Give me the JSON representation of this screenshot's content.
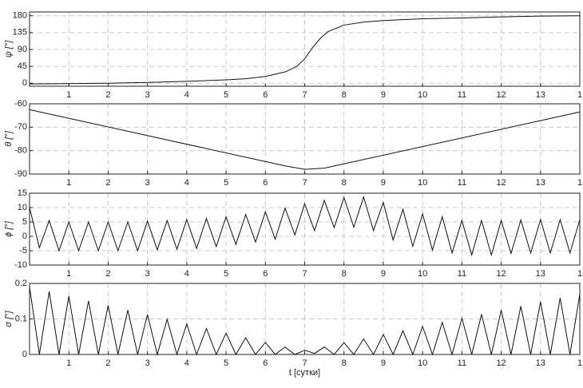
{
  "chart_data": [
    {
      "type": "line",
      "ylabel": "ψ [°]",
      "xlim": [
        0,
        14
      ],
      "xticks": [
        1,
        2,
        3,
        4,
        5,
        6,
        7,
        8,
        9,
        10,
        11,
        12,
        13,
        {
          "value": 14,
          "label": "1"
        }
      ],
      "ylim": [
        -8,
        190
      ],
      "yticks": [
        0,
        45,
        90,
        135,
        180
      ],
      "grid": true,
      "x": [
        0,
        1,
        2,
        3,
        4,
        5,
        5.5,
        6,
        6.5,
        6.8,
        7,
        7.2,
        7.4,
        7.6,
        8,
        8.5,
        9,
        10,
        11,
        12,
        13,
        14
      ],
      "series": [
        {
          "color": "#111111",
          "values": [
            -2,
            -1,
            0,
            2,
            5,
            9,
            12,
            18,
            30,
            45,
            65,
            95,
            120,
            138,
            155,
            163,
            167,
            172,
            174,
            177,
            179,
            180
          ]
        }
      ]
    },
    {
      "type": "line",
      "ylabel": "θ [°]",
      "xlim": [
        0,
        14
      ],
      "xticks": [
        1,
        2,
        3,
        4,
        5,
        6,
        7,
        8,
        9,
        10,
        11,
        12,
        13,
        {
          "value": 14,
          "label": "1"
        }
      ],
      "ylim": [
        -90,
        -60
      ],
      "yticks": [
        -60,
        -70,
        -80,
        -90
      ],
      "grid": true,
      "x": [
        0,
        6.5,
        7,
        7.5,
        14
      ],
      "series": [
        {
          "color": "#111111",
          "values": [
            -62.5,
            -86.5,
            -88,
            -87.5,
            -63.5
          ]
        }
      ]
    },
    {
      "type": "line",
      "ylabel": "ϕ [°]",
      "xlim": [
        0,
        14
      ],
      "xticks": [
        1,
        2,
        3,
        4,
        5,
        6,
        7,
        8,
        9,
        10,
        11,
        12,
        13,
        {
          "value": 14,
          "label": "1"
        }
      ],
      "ylim": [
        -10,
        15
      ],
      "yticks": [
        -10,
        -5,
        0,
        5,
        10,
        15
      ],
      "grid": true,
      "x": [
        0,
        0.25,
        0.5,
        0.75,
        1,
        1.25,
        1.5,
        1.75,
        2,
        2.25,
        2.5,
        2.75,
        3,
        3.25,
        3.5,
        3.75,
        4,
        4.25,
        4.5,
        4.75,
        5,
        5.25,
        5.5,
        5.75,
        6,
        6.25,
        6.5,
        6.75,
        7,
        7.25,
        7.5,
        7.75,
        8,
        8.25,
        8.5,
        8.75,
        9,
        9.25,
        9.5,
        9.75,
        10,
        10.25,
        10.5,
        10.75,
        11,
        11.25,
        11.5,
        11.75,
        12,
        12.25,
        12.5,
        12.75,
        13,
        13.25,
        13.5,
        13.75,
        14
      ],
      "series": [
        {
          "color": "#111111",
          "values": [
            10,
            -4,
            5.5,
            -5,
            5,
            -5,
            5,
            -5,
            5,
            -5,
            5,
            -5,
            5.3,
            -4.7,
            5.5,
            -4.5,
            5.8,
            -4.2,
            6.2,
            -3.6,
            6.8,
            -2.8,
            7.6,
            -2,
            8.5,
            -1,
            9.8,
            0.5,
            11.3,
            2,
            12.5,
            3,
            13.5,
            3.2,
            13.7,
            2,
            11.8,
            -1.3,
            9.4,
            -3.5,
            7.8,
            -4.8,
            6.8,
            -5.8,
            5.5,
            -6.5,
            5.5,
            -6.5,
            5.5,
            -6,
            5.7,
            -5.8,
            5.8,
            -5.8,
            5.8,
            -5.8,
            5.8
          ]
        }
      ]
    },
    {
      "type": "line",
      "ylabel": "σ [°]",
      "xlabel": "t [сутки]",
      "xlim": [
        0,
        14
      ],
      "xticks": [
        1,
        2,
        3,
        4,
        5,
        6,
        7,
        8,
        9,
        10,
        11,
        12,
        13,
        {
          "value": 14,
          "label": "1"
        }
      ],
      "ylim": [
        0,
        0.2
      ],
      "yticks": [
        0,
        0.1,
        0.2
      ],
      "grid": true,
      "x": [
        0,
        0.25,
        0.5,
        0.75,
        1,
        1.25,
        1.5,
        1.75,
        2,
        2.25,
        2.5,
        2.75,
        3,
        3.25,
        3.5,
        3.75,
        4,
        4.25,
        4.5,
        4.75,
        5,
        5.25,
        5.5,
        5.75,
        6,
        6.25,
        6.5,
        6.75,
        7,
        7.25,
        7.5,
        7.75,
        8,
        8.25,
        8.5,
        8.75,
        9,
        9.25,
        9.5,
        9.75,
        10,
        10.25,
        10.5,
        10.75,
        11,
        11.25,
        11.5,
        11.75,
        12,
        12.25,
        12.5,
        12.75,
        13,
        13.25,
        13.5,
        13.75,
        14
      ],
      "series": [
        {
          "color": "#111111",
          "values": [
            0.19,
            0,
            0.177,
            0,
            0.164,
            0,
            0.151,
            0,
            0.138,
            0,
            0.125,
            0,
            0.112,
            0,
            0.099,
            0,
            0.086,
            0,
            0.073,
            0,
            0.06,
            0,
            0.047,
            0,
            0.034,
            0,
            0.021,
            0,
            0.012,
            0.003,
            0.021,
            0,
            0.033,
            0,
            0.044,
            0,
            0.056,
            0,
            0.067,
            0,
            0.079,
            0,
            0.09,
            0,
            0.102,
            0,
            0.113,
            0,
            0.125,
            0,
            0.136,
            0,
            0.148,
            0,
            0.159,
            0,
            0.17
          ]
        }
      ]
    }
  ]
}
